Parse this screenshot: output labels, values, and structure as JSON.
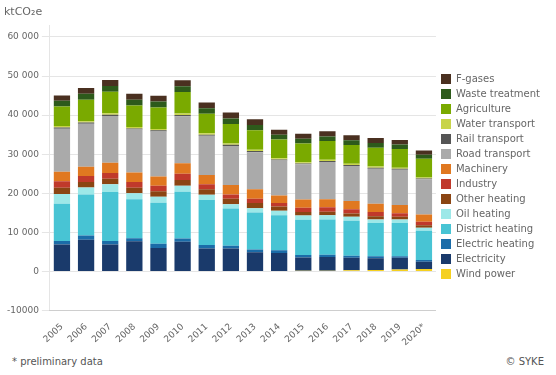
{
  "chart_data": {
    "type": "bar",
    "title": "ktCO₂e",
    "stacked": true,
    "grid": true,
    "legend": "right",
    "categories": [
      "2005",
      "2006",
      "2007",
      "2008",
      "2009",
      "2010",
      "2011",
      "2012",
      "2013",
      "2014",
      "2015",
      "2016",
      "2017",
      "2018",
      "2019",
      "2020*"
    ],
    "series": [
      {
        "name": "Wind power",
        "color": "#f5d020",
        "values": [
          100,
          100,
          100,
          100,
          100,
          100,
          100,
          100,
          100,
          100,
          200,
          200,
          300,
          400,
          500,
          600
        ]
      },
      {
        "name": "Electricity",
        "color": "#1a3a6b",
        "values": [
          6800,
          8000,
          6800,
          7600,
          5900,
          7500,
          5800,
          5800,
          4800,
          4600,
          3400,
          3500,
          3200,
          3000,
          3000,
          1900
        ]
      },
      {
        "name": "Electric heating",
        "color": "#1b6ca8",
        "values": [
          900,
          1100,
          900,
          800,
          1100,
          800,
          900,
          700,
          700,
          700,
          600,
          600,
          500,
          500,
          400,
          400
        ]
      },
      {
        "name": "District heating",
        "color": "#48c4d4",
        "values": [
          9500,
          10500,
          12500,
          10000,
          10500,
          12000,
          11500,
          9500,
          9500,
          9000,
          9000,
          9000,
          9000,
          8500,
          8500,
          7500
        ]
      },
      {
        "name": "Oil heating",
        "color": "#9de8e8",
        "values": [
          2500,
          1800,
          2000,
          1500,
          1500,
          1500,
          1300,
          1100,
          1100,
          1100,
          1100,
          1100,
          1000,
          900,
          900,
          800
        ]
      },
      {
        "name": "Other heating",
        "color": "#8b4513",
        "values": [
          1600,
          1400,
          1400,
          1400,
          1400,
          1500,
          1400,
          1400,
          1300,
          1100,
          900,
          900,
          800,
          800,
          700,
          600
        ]
      },
      {
        "name": "Industry",
        "color": "#c0392b",
        "values": [
          1700,
          1500,
          1500,
          1500,
          1400,
          1600,
          1300,
          1100,
          1100,
          900,
          1100,
          1100,
          1100,
          1100,
          900,
          900
        ]
      },
      {
        "name": "Machinery",
        "color": "#e07820",
        "values": [
          2400,
          2400,
          2600,
          2400,
          2400,
          2700,
          2400,
          2400,
          2400,
          1900,
          2100,
          2100,
          2100,
          2100,
          2100,
          1900
        ]
      },
      {
        "name": "Road transport",
        "color": "#aaaaaa",
        "values": [
          11000,
          11000,
          12000,
          11000,
          11500,
          12000,
          10000,
          10000,
          9500,
          9000,
          9000,
          9500,
          9000,
          9000,
          9000,
          9000
        ]
      },
      {
        "name": "Rail transport",
        "color": "#555555",
        "values": [
          350,
          300,
          300,
          300,
          300,
          350,
          300,
          300,
          300,
          250,
          250,
          250,
          250,
          250,
          250,
          200
        ]
      },
      {
        "name": "Water transport",
        "color": "#c8d44a",
        "values": [
          350,
          350,
          350,
          350,
          350,
          350,
          350,
          350,
          350,
          300,
          300,
          300,
          300,
          300,
          300,
          250
        ]
      },
      {
        "name": "Agriculture",
        "color": "#7aaa00",
        "values": [
          5000,
          5500,
          5500,
          5500,
          5500,
          5500,
          5000,
          5000,
          5000,
          4800,
          4800,
          4800,
          4800,
          4800,
          4800,
          4800
        ]
      },
      {
        "name": "Waste treatment",
        "color": "#2d5a1b",
        "values": [
          1500,
          1500,
          1500,
          1500,
          1500,
          1500,
          1400,
          1400,
          1300,
          1200,
          1200,
          1200,
          1200,
          1200,
          1100,
          1000
        ]
      },
      {
        "name": "F-gases",
        "color": "#4a3020",
        "values": [
          1300,
          1500,
          1500,
          1500,
          1500,
          1500,
          1500,
          1500,
          1500,
          1300,
          1300,
          1300,
          1300,
          1300,
          1200,
          1100
        ]
      }
    ],
    "ylim": [
      -10000,
      63000
    ],
    "yticks": [
      -10000,
      0,
      {
        "value": 10000,
        "label": "10 000"
      },
      {
        "value": 20000,
        "label": "20 000"
      },
      {
        "value": 30000,
        "label": "30 000"
      },
      {
        "value": 40000,
        "label": "40 000"
      },
      {
        "value": 50000,
        "label": "50 000"
      },
      {
        "value": 60000,
        "label": "60 000"
      }
    ],
    "annotations": [
      "* preliminary data",
      "© SYKE"
    ]
  }
}
